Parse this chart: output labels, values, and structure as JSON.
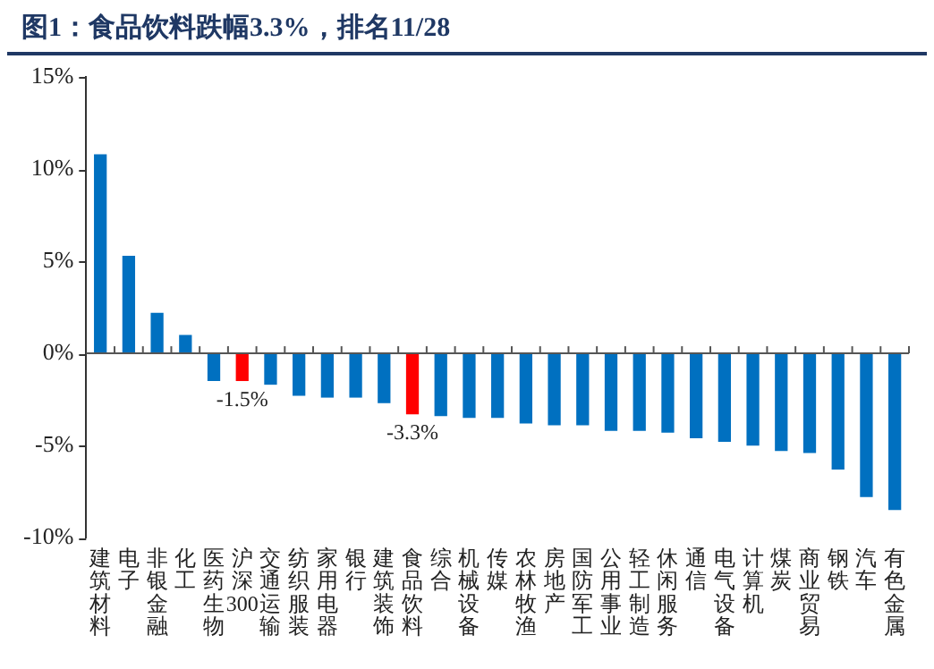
{
  "chart_data": {
    "type": "bar",
    "title": "图1：食品饮料跌幅3.3%，排名11/28",
    "categories": [
      "建筑材料",
      "电子",
      "非银金融",
      "化工",
      "医药生物",
      "沪深300",
      "交通运输",
      "纺织服装",
      "家用电器",
      "银行",
      "建筑装饰",
      "食品饮料",
      "综合",
      "机械设备",
      "传媒",
      "农林牧渔",
      "房地产",
      "国防军工",
      "公用事业",
      "轻工制造",
      "休闲服务",
      "通信",
      "电气设备",
      "计算机",
      "煤炭",
      "商业贸易",
      "钢铁",
      "汽车",
      "有色金属"
    ],
    "values": [
      10.8,
      5.3,
      2.2,
      1.0,
      -1.5,
      -1.5,
      -1.7,
      -2.3,
      -2.4,
      -2.4,
      -2.7,
      -3.3,
      -3.4,
      -3.5,
      -3.5,
      -3.8,
      -3.9,
      -3.9,
      -4.2,
      -4.2,
      -4.3,
      -4.6,
      -4.8,
      -5.0,
      -5.3,
      -5.4,
      -6.3,
      -7.8,
      -8.5
    ],
    "colors": [
      "#0070c0",
      "#0070c0",
      "#0070c0",
      "#0070c0",
      "#0070c0",
      "#ff0000",
      "#0070c0",
      "#0070c0",
      "#0070c0",
      "#0070c0",
      "#0070c0",
      "#ff0000",
      "#0070c0",
      "#0070c0",
      "#0070c0",
      "#0070c0",
      "#0070c0",
      "#0070c0",
      "#0070c0",
      "#0070c0",
      "#0070c0",
      "#0070c0",
      "#0070c0",
      "#0070c0",
      "#0070c0",
      "#0070c0",
      "#0070c0",
      "#0070c0",
      "#0070c0"
    ],
    "value_labels": [
      null,
      null,
      null,
      null,
      null,
      "-1.5%",
      null,
      null,
      null,
      null,
      null,
      "-3.3%",
      null,
      null,
      null,
      null,
      null,
      null,
      null,
      null,
      null,
      null,
      null,
      null,
      null,
      null,
      null,
      null,
      null
    ],
    "ylim": [
      -10,
      15
    ],
    "yticks": [
      {
        "value": -10,
        "label": "-10%"
      },
      {
        "value": -5,
        "label": "-5%"
      },
      {
        "value": 0,
        "label": "0%"
      },
      {
        "value": 5,
        "label": "5%"
      },
      {
        "value": 10,
        "label": "10%"
      },
      {
        "value": 15,
        "label": "15%"
      }
    ],
    "legend": false
  }
}
